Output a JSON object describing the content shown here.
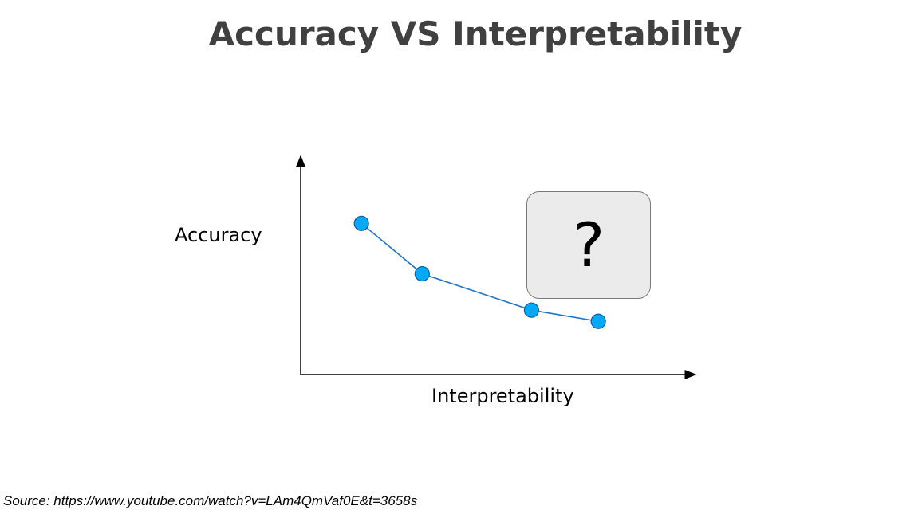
{
  "title": "Accuracy VS Interpretability",
  "source": "Source: https://www.youtube.com/watch?v=LAm4QmVaf0E&t=3658s",
  "callout": "?",
  "colors": {
    "point_fill": "#03a9f4",
    "point_stroke": "#0b5fa8",
    "line": "#1a73c8",
    "axis": "#000000",
    "callout_fill": "#ebebeb"
  },
  "chart_data": {
    "type": "line",
    "xlabel": "Interpretability",
    "ylabel": "Accuracy",
    "x": [
      1,
      2,
      3.8,
      4.9
    ],
    "series": [
      {
        "values": [
          5.4,
          3.6,
          2.3,
          1.9
        ]
      }
    ],
    "xlim": [
      0,
      6.5
    ],
    "ylim": [
      0,
      7.8
    ],
    "grid": false,
    "axis_ticks": false
  }
}
